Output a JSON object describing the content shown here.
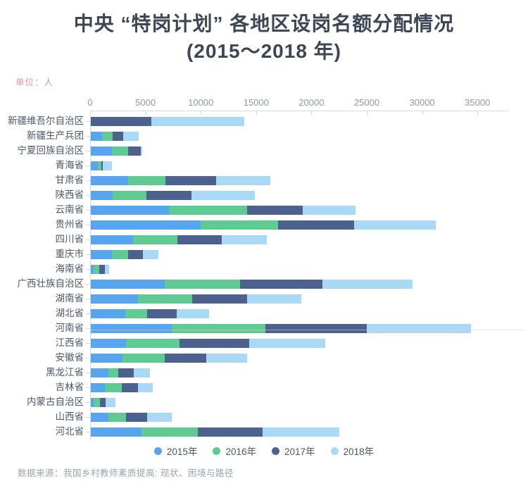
{
  "page": {
    "title_line1": "中央 “特岗计划” 各地区设岗名额分配情况",
    "title_line2": "(2015～2018 年)",
    "unit_label": "单位：人",
    "source_text": "数据来源：我国乡村教师素质提高: 现状、困境与路径"
  },
  "colors": {
    "title": "#3d4654",
    "unit_label": "#dc96a1",
    "axis_line": "#d4d8dd",
    "axis_label": "#8d99a6",
    "category_label": "#4d5866",
    "legend_label": "#4d5866",
    "source_text": "#9aa3ad",
    "highlight_line": "#f3c6d0"
  },
  "chart_data": {
    "type": "bar",
    "orientation": "horizontal",
    "stacked": true,
    "title": "中央 “特岗计划” 各地区设岗名额分配情况 (2015～2018 年)",
    "unit": "人",
    "xlabel": "",
    "ylabel": "",
    "xlim": [
      0,
      37800
    ],
    "x_ticks": [
      0,
      5000,
      10000,
      15000,
      20000,
      25000,
      30000,
      35000
    ],
    "grid": false,
    "legend_position": "bottom",
    "categories": [
      "新疆维吾尔自治区",
      "新疆生产兵团",
      "宁夏回族自治区",
      "青海省",
      "甘肃省",
      "陕西省",
      "云南省",
      "贵州省",
      "四川省",
      "重庆市",
      "海南省",
      "广西壮族自治区",
      "湖南省",
      "湖北省",
      "河南省",
      "江西省",
      "安徽省",
      "黑龙江省",
      "吉林省",
      "内蒙古自治区",
      "山西省",
      "河北省"
    ],
    "series": [
      {
        "name": "2015年",
        "color": "#56a5ee",
        "values": [
          0,
          1000,
          1900,
          650,
          3350,
          2000,
          7050,
          9900,
          3800,
          1900,
          270,
          6700,
          4250,
          3100,
          7300,
          3150,
          2850,
          1600,
          1300,
          270,
          1600,
          4550
        ]
      },
      {
        "name": "2016年",
        "color": "#5fcb92",
        "values": [
          0,
          1000,
          1500,
          300,
          3400,
          3000,
          7100,
          7000,
          4000,
          1450,
          490,
          6800,
          4900,
          2000,
          8500,
          4850,
          3800,
          900,
          1480,
          550,
          1580,
          5100
        ]
      },
      {
        "name": "2017年",
        "color": "#4c618e",
        "values": [
          5450,
          950,
          1100,
          150,
          4600,
          4100,
          5000,
          6900,
          4050,
          1350,
          490,
          7450,
          5000,
          2650,
          9150,
          6300,
          3800,
          1400,
          1500,
          530,
          1900,
          5900
        ]
      },
      {
        "name": "2018年",
        "color": "#a9d9f5",
        "values": [
          8400,
          1350,
          150,
          800,
          4900,
          5750,
          4750,
          7400,
          4050,
          1400,
          420,
          8100,
          4900,
          2950,
          9400,
          6900,
          3700,
          1450,
          1350,
          850,
          2250,
          6900
        ]
      }
    ]
  }
}
